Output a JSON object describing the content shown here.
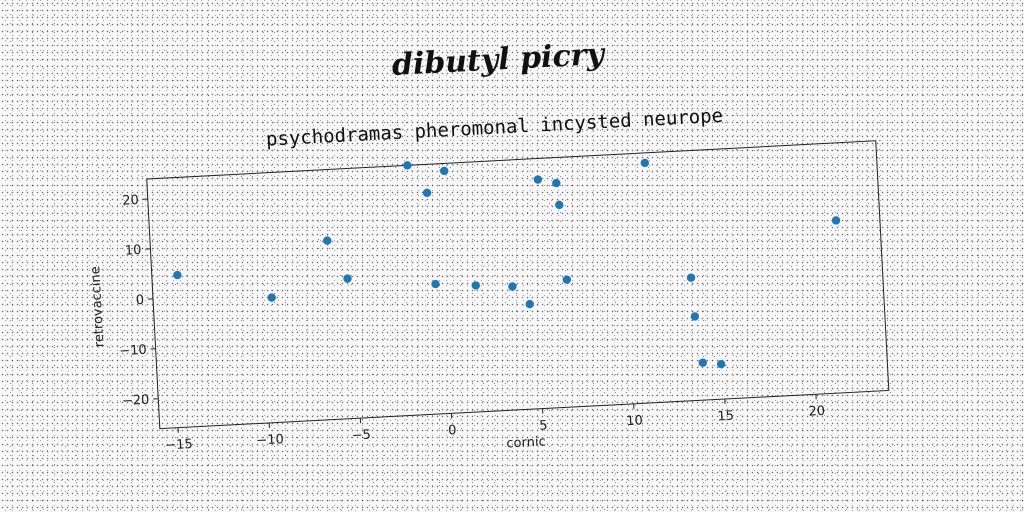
{
  "supertitle": "dibutyl picry",
  "chart_data": {
    "type": "scatter",
    "title": "psychodramas pheromonal incysted neurope",
    "xlabel": "cornic",
    "ylabel": "retrovaccine",
    "xlim": [
      -16,
      24
    ],
    "ylim": [
      -26,
      24
    ],
    "xticks": [
      -15,
      -10,
      -5,
      0,
      5,
      10,
      15,
      20
    ],
    "yticks": [
      -20,
      -10,
      0,
      10,
      20
    ],
    "grid": false,
    "color": "#1f77b4",
    "points": [
      {
        "x": -14.6,
        "y": 4.5
      },
      {
        "x": -9.5,
        "y": -1.0
      },
      {
        "x": -6.3,
        "y": 9.8
      },
      {
        "x": -5.3,
        "y": 2.0
      },
      {
        "x": -1.7,
        "y": 24.0
      },
      {
        "x": -0.7,
        "y": 18.3
      },
      {
        "x": 0.3,
        "y": 22.5
      },
      {
        "x": -0.5,
        "y": 0.0
      },
      {
        "x": 1.7,
        "y": -0.7
      },
      {
        "x": 3.7,
        "y": -1.3
      },
      {
        "x": 4.6,
        "y": -5.0
      },
      {
        "x": 5.4,
        "y": 19.8
      },
      {
        "x": 6.4,
        "y": 18.9
      },
      {
        "x": 6.5,
        "y": 14.5
      },
      {
        "x": 6.7,
        "y": -0.5
      },
      {
        "x": 11.3,
        "y": 22.0
      },
      {
        "x": 13.5,
        "y": -1.4
      },
      {
        "x": 13.6,
        "y": -9.2
      },
      {
        "x": 13.9,
        "y": -18.5
      },
      {
        "x": 14.9,
        "y": -19.0
      },
      {
        "x": 21.6,
        "y": 8.5
      }
    ]
  }
}
